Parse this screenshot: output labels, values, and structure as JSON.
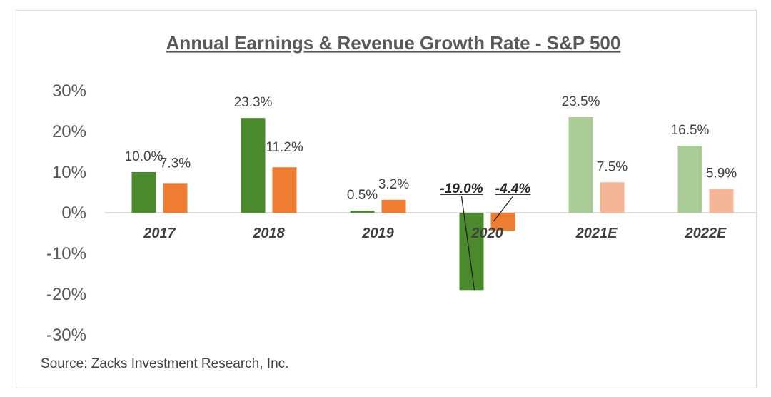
{
  "chart_data": {
    "type": "bar",
    "title": "Annual Earnings & Revenue Growth Rate - S&P 500",
    "categories": [
      "2017",
      "2018",
      "2019",
      "2020",
      "2021E",
      "2022E"
    ],
    "series": [
      {
        "values": [
          10.0,
          23.3,
          0.5,
          -19.0,
          23.5,
          16.5
        ],
        "labels": [
          "10.0%",
          "23.3%",
          "0.5%",
          "-19.0%",
          "23.5%",
          "16.5%"
        ]
      },
      {
        "values": [
          7.3,
          11.2,
          3.2,
          -4.4,
          7.5,
          5.9
        ],
        "labels": [
          "7.3%",
          "11.2%",
          "3.2%",
          "-4.4%",
          "7.5%",
          "5.9%"
        ]
      }
    ],
    "y_ticks": [
      "30%",
      "20%",
      "10%",
      "0%",
      "-10%",
      "-20%",
      "-30%"
    ],
    "ylim": [
      -30,
      30
    ],
    "grid": false,
    "legend": "none",
    "source": "Source: Zacks Investment Research, Inc.",
    "colors": {
      "series1_actual": "#4a8a2c",
      "series2_actual": "#ee7d31",
      "series1_estimate": "#a9cb95",
      "series2_estimate": "#f5b597"
    }
  }
}
